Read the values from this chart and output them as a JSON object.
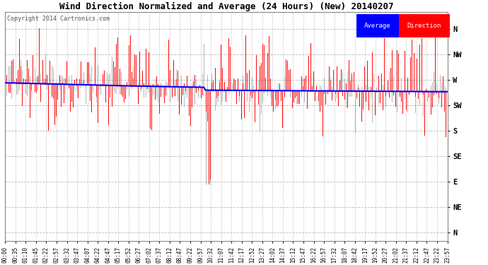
{
  "title": "Wind Direction Normalized and Average (24 Hours) (New) 20140207",
  "copyright": "Copyright 2014 Cartronics.com",
  "background_color": "#ffffff",
  "plot_bg_color": "#ffffff",
  "grid_color": "#bbbbbb",
  "direction_labels": [
    "N",
    "NW",
    "W",
    "SW",
    "S",
    "SE",
    "E",
    "NE",
    "N"
  ],
  "ytick_positions": [
    360,
    315,
    270,
    225,
    180,
    135,
    90,
    45,
    0
  ],
  "ylim": [
    -15,
    390
  ],
  "red_color": "#ff0000",
  "blue_color": "#0000ff",
  "black_color": "#000000",
  "legend_avg_bg": "#0000ff",
  "legend_dir_bg": "#ff0000",
  "legend_avg_text": "Average",
  "legend_dir_text": "Direction",
  "n_points": 288,
  "time_labels": [
    "00:00",
    "00:35",
    "01:10",
    "01:45",
    "02:22",
    "02:57",
    "03:32",
    "03:47",
    "04:07",
    "04:22",
    "04:47",
    "05:17",
    "05:52",
    "06:27",
    "07:02",
    "07:37",
    "08:12",
    "08:47",
    "09:22",
    "09:57",
    "10:32",
    "11:07",
    "11:42",
    "12:17",
    "12:52",
    "13:27",
    "14:02",
    "14:37",
    "15:12",
    "15:47",
    "16:22",
    "16:57",
    "17:32",
    "18:07",
    "18:42",
    "19:17",
    "19:52",
    "20:27",
    "21:02",
    "21:37",
    "22:12",
    "22:47",
    "23:22",
    "23:57"
  ],
  "figsize": [
    6.9,
    3.75
  ],
  "dpi": 100
}
